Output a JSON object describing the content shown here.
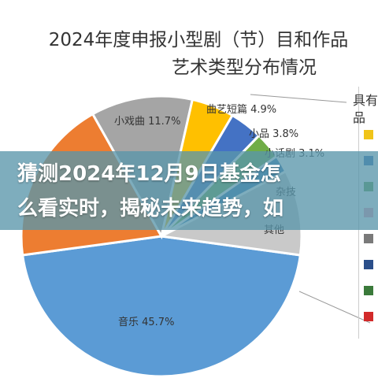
{
  "header": {
    "title_line_1": "2024年度申报小型剧（节）目和作品",
    "title_line_2": "艺术类型分布情况"
  },
  "banner": {
    "text": "猜测2024年12月9日基金怎\n么看实时，揭秘未来趋势，如"
  },
  "legend": {
    "header": "具有",
    "sub": "品",
    "swatch_colors": [
      "#f0c419",
      "#2e6db4",
      "#5aa04a",
      "#f2a0b6",
      "#7a7a7a",
      "#2a4e8a",
      "#3a7a3a",
      "#d22a2a"
    ]
  },
  "chart_data": {
    "type": "pie",
    "title": "2024年度申报小型剧（节）目和作品艺术类型分布情况",
    "slices": [
      {
        "name": "音乐",
        "value": 45.7,
        "label": "音乐 45.7%",
        "color": "#5b9bd5"
      },
      {
        "name": "",
        "value": 19.0,
        "label": "",
        "color": "#ed7d31"
      },
      {
        "name": "小戏曲",
        "value": 11.7,
        "label": "小戏曲 11.7%",
        "color": "#a5a5a5"
      },
      {
        "name": "曲艺短篇",
        "value": 4.9,
        "label": "曲艺短篇 4.9%",
        "color": "#ffc000"
      },
      {
        "name": "小品",
        "value": 3.8,
        "label": "小品 3.8%",
        "color": "#4472c4"
      },
      {
        "name": "小话剧",
        "value": 3.1,
        "label": "小话剧 3.1%",
        "color": "#70ad47"
      },
      {
        "name": "杂技",
        "value": 2.0,
        "label": "杂技",
        "color": "#2e75b6"
      },
      {
        "name": "其他",
        "value": 9.8,
        "label": "其他",
        "color": "#c9c9c9"
      }
    ]
  }
}
